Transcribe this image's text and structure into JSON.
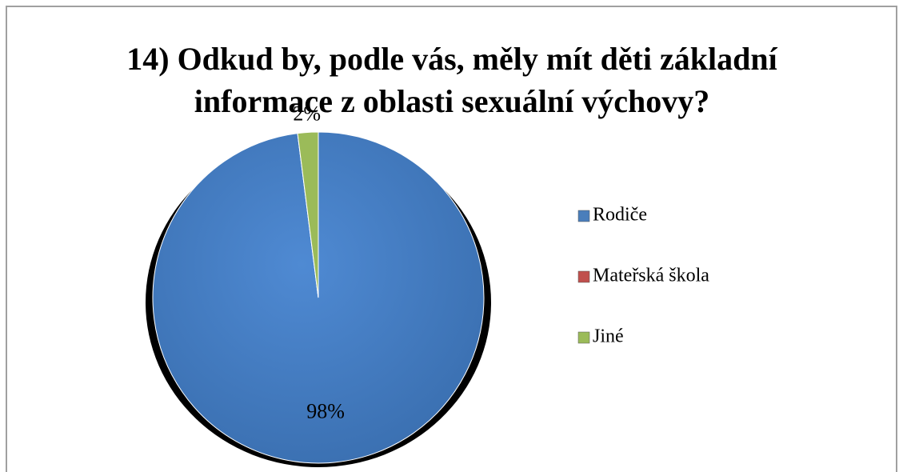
{
  "chart_data": {
    "type": "pie",
    "title": "14) Odkud by, podle vás, měly mít děti základní informace z oblasti sexuální výchovy?",
    "title_lines": [
      "14) Odkud by, podle vás, měly mít děti základní",
      "informace z oblasti sexuální výchovy?"
    ],
    "categories": [
      "Rodiče",
      "Mateřská škola",
      "Jiné"
    ],
    "values": [
      98,
      0,
      2
    ],
    "value_labels": [
      "98%",
      null,
      "2%"
    ],
    "colors": [
      "#4a7ebb",
      "#c0504d",
      "#9bbb59"
    ],
    "legend": "right"
  }
}
